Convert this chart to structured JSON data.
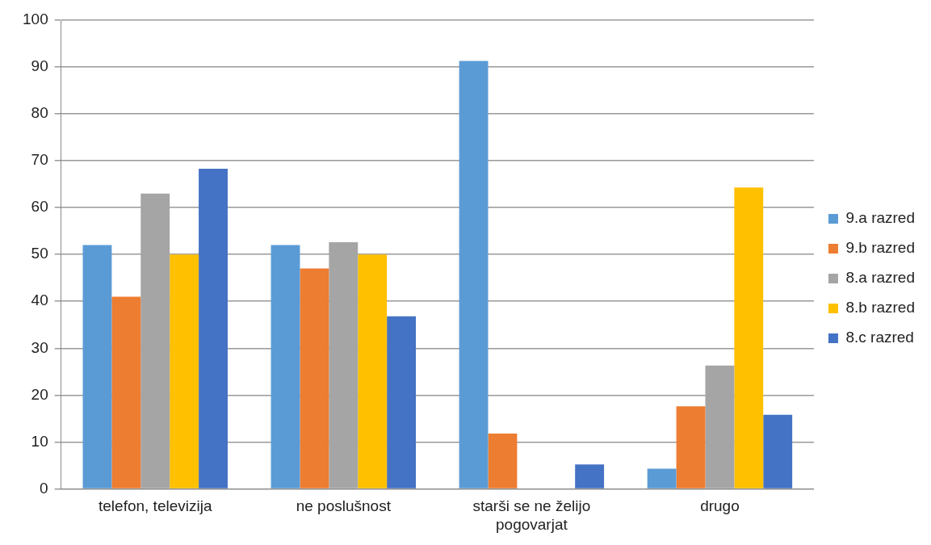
{
  "chart_data": {
    "type": "bar",
    "categories": [
      "telefon, televizija",
      "ne poslušnost",
      "starši se ne želijo pogovarjat",
      "drugo"
    ],
    "series": [
      {
        "name": "9.a razred",
        "color": "#5b9bd5",
        "values": [
          52,
          52,
          91.3,
          4.3
        ]
      },
      {
        "name": "9.b razred",
        "color": "#ed7d31",
        "values": [
          41,
          47,
          11.8,
          17.6
        ]
      },
      {
        "name": "8.a razred",
        "color": "#a5a5a5",
        "values": [
          63,
          52.6,
          0,
          26.3
        ]
      },
      {
        "name": "8.b razred",
        "color": "#ffc000",
        "values": [
          50,
          50,
          0,
          64.3
        ]
      },
      {
        "name": "8.c razred",
        "color": "#4472c4",
        "values": [
          68.3,
          36.8,
          5.2,
          15.8
        ]
      }
    ],
    "ylim": [
      0,
      100
    ],
    "yticks": [
      0,
      10,
      20,
      30,
      40,
      50,
      60,
      70,
      80,
      90,
      100
    ],
    "grid": "y",
    "legend": "right"
  }
}
